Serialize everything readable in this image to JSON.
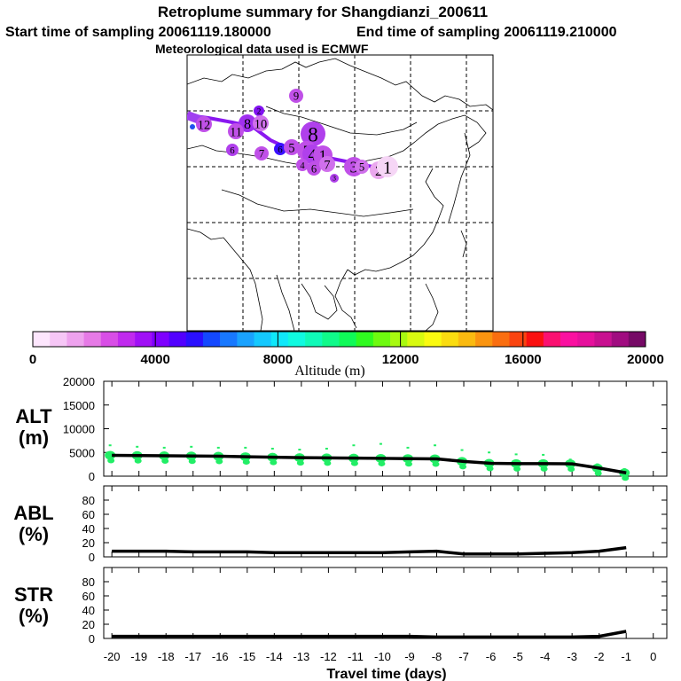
{
  "title": {
    "line1": "Retroplume summary for Shangdianzi_200611",
    "line2_start": "Start time of sampling 20061119.180000",
    "line2_end": "End time of sampling 20061119.210000",
    "line3": "Meteorological data used is ECMWF"
  },
  "colorbar": {
    "label": "Altitude (m)",
    "ticks": [
      "0",
      "4000",
      "8000",
      "12000",
      "16000",
      "20000"
    ],
    "colors": [
      "#fde6fd",
      "#f6c6f6",
      "#eea2ee",
      "#e67ae6",
      "#d84ee6",
      "#c02aee",
      "#a010f6",
      "#7e00fe",
      "#5200fe",
      "#2a10fe",
      "#1448fe",
      "#1878fe",
      "#1aa2fe",
      "#14c8fe",
      "#10e8fa",
      "#10fae0",
      "#10fab8",
      "#10fa8a",
      "#10fa58",
      "#30fa20",
      "#6efa10",
      "#a8fa10",
      "#d8fa10",
      "#fafa10",
      "#fadc10",
      "#faba10",
      "#fa9410",
      "#fa6e10",
      "#fa4410",
      "#fa1010",
      "#fa1070",
      "#fa10a0",
      "#e6109c",
      "#c81090",
      "#a00c80",
      "#760a66"
    ]
  },
  "map": {
    "labels": [
      {
        "t": "9",
        "c": "#c050e8",
        "s": 14
      },
      {
        "t": "2",
        "c": "#8010f0",
        "s": 10
      },
      {
        "t": "12",
        "c": "#c050e8",
        "s": 16
      },
      {
        "t": "8",
        "c": "#a030f0",
        "s": 18
      },
      {
        "t": "11",
        "c": "#c050e8",
        "s": 16
      },
      {
        "t": "10",
        "c": "#d070ec",
        "s": 16
      },
      {
        "t": "8",
        "c": "#b040ec",
        "s": 26
      },
      {
        "t": "6",
        "c": "#b040ec",
        "s": 12
      },
      {
        "t": "7",
        "c": "#c050e8",
        "s": 14
      },
      {
        "t": "6",
        "c": "#3a10fe",
        "s": 12
      },
      {
        "t": "5",
        "c": "#c050e8",
        "s": 16
      },
      {
        "t": "5",
        "c": "#c050e8",
        "s": 20
      },
      {
        "t": "4",
        "c": "#b040ec",
        "s": 20
      },
      {
        "t": "1",
        "c": "#c050e8",
        "s": 20
      },
      {
        "t": "4",
        "c": "#c050e8",
        "s": 12
      },
      {
        "t": "6",
        "c": "#c050e8",
        "s": 14
      },
      {
        "t": "7",
        "c": "#d070ec",
        "s": 16
      },
      {
        "t": "3",
        "c": "#c050e8",
        "s": 20
      },
      {
        "t": "5",
        "c": "#d070ec",
        "s": 14
      },
      {
        "t": "2",
        "c": "#eaa8ee",
        "s": 18
      },
      {
        "t": "1",
        "c": "#f6d6f6",
        "s": 22
      },
      {
        "t": "3",
        "c": "#b040ec",
        "s": 8
      }
    ]
  },
  "chart_data": [
    {
      "type": "line",
      "panel": "ALT",
      "ylabel": "ALT\n(m)",
      "ylabel_line1": "ALT",
      "ylabel_line2": "(m)",
      "ylim": [
        0,
        20000
      ],
      "yticks": [
        "0",
        "5000",
        "10000",
        "15000",
        "20000"
      ],
      "x": [
        -20,
        -19,
        -18,
        -17,
        -16,
        -15,
        -14,
        -13,
        -12,
        -11,
        -10,
        -9,
        -8,
        -7,
        -6,
        -5,
        -4,
        -3,
        -2,
        -1
      ],
      "series": [
        {
          "name": "mean altitude",
          "values": [
            4400,
            4350,
            4300,
            4250,
            4200,
            4100,
            4000,
            3900,
            3850,
            3800,
            3750,
            3700,
            3650,
            3100,
            2700,
            2650,
            2650,
            2600,
            1700,
            700
          ]
        }
      ],
      "particle_tops": [
        6500,
        6200,
        6000,
        6200,
        6000,
        6000,
        5800,
        5600,
        5800,
        6500,
        6800,
        6000,
        6500,
        5500,
        5000,
        4600,
        4500,
        3500,
        2500,
        1500
      ]
    },
    {
      "type": "line",
      "panel": "ABL",
      "ylabel_line1": "ABL",
      "ylabel_line2": "(%)",
      "ylim": [
        0,
        100
      ],
      "yticks": [
        "0",
        "20",
        "40",
        "60",
        "80"
      ],
      "x": [
        -20,
        -19,
        -18,
        -17,
        -16,
        -15,
        -14,
        -13,
        -12,
        -11,
        -10,
        -9,
        -8,
        -7,
        -6,
        -5,
        -4,
        -3,
        -2,
        -1
      ],
      "series": [
        {
          "name": "ABL fraction",
          "values": [
            8,
            8,
            8,
            7,
            7,
            7,
            6,
            6,
            6,
            6,
            6,
            7,
            8,
            4,
            4,
            4,
            5,
            6,
            8,
            13
          ]
        }
      ]
    },
    {
      "type": "line",
      "panel": "STR",
      "ylabel_line1": "STR",
      "ylabel_line2": "(%)",
      "ylim": [
        0,
        100
      ],
      "yticks": [
        "0",
        "20",
        "40",
        "60",
        "80"
      ],
      "x": [
        -20,
        -19,
        -18,
        -17,
        -16,
        -15,
        -14,
        -13,
        -12,
        -11,
        -10,
        -9,
        -8,
        -7,
        -6,
        -5,
        -4,
        -3,
        -2,
        -1
      ],
      "xlabel": "Travel time (days)",
      "xticks": [
        "-20",
        "-19",
        "-18",
        "-17",
        "-16",
        "-15",
        "-14",
        "-13",
        "-12",
        "-11",
        "-10",
        "-9",
        "-8",
        "-7",
        "-6",
        "-5",
        "-4",
        "-3",
        "-2",
        "-1",
        "0"
      ],
      "series": [
        {
          "name": "stratospheric fraction",
          "values": [
            3,
            3,
            3,
            3,
            3,
            3,
            3,
            3,
            3,
            3,
            3,
            3,
            2,
            2,
            2,
            2,
            2,
            2,
            3,
            10
          ]
        }
      ]
    }
  ]
}
